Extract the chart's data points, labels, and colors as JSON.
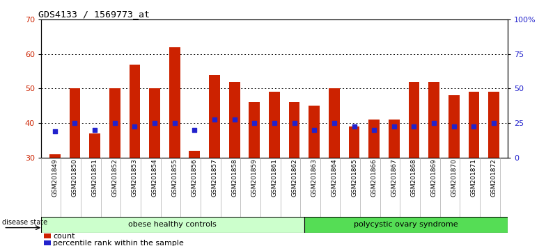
{
  "title": "GDS4133 / 1569773_at",
  "samples": [
    "GSM201849",
    "GSM201850",
    "GSM201851",
    "GSM201852",
    "GSM201853",
    "GSM201854",
    "GSM201855",
    "GSM201856",
    "GSM201857",
    "GSM201858",
    "GSM201859",
    "GSM201861",
    "GSM201862",
    "GSM201863",
    "GSM201864",
    "GSM201865",
    "GSM201866",
    "GSM201867",
    "GSM201868",
    "GSM201869",
    "GSM201870",
    "GSM201871",
    "GSM201872"
  ],
  "counts": [
    31,
    50,
    37,
    50,
    57,
    50,
    62,
    32,
    54,
    52,
    46,
    49,
    46,
    45,
    50,
    39,
    41,
    41,
    52,
    52,
    48,
    49,
    49
  ],
  "percentiles_y": [
    37.5,
    40,
    38,
    40,
    39,
    40,
    40,
    38,
    41,
    41,
    40,
    40,
    40,
    38,
    40,
    39,
    38,
    39,
    39,
    40,
    39,
    39,
    40
  ],
  "ymin": 30,
  "ymax": 70,
  "pct_min": 0,
  "pct_max": 100,
  "bar_color": "#cc2200",
  "pct_color": "#2222cc",
  "group1_label": "obese healthy controls",
  "group2_label": "polycystic ovary syndrome",
  "group1_count": 13,
  "group1_bg": "#ccffcc",
  "group2_bg": "#55dd55",
  "disease_label": "disease state",
  "legend_count": "count",
  "legend_pct": "percentile rank within the sample",
  "ylabel_left_color": "#cc2200",
  "ylabel_right_color": "#2222cc",
  "yticks_left": [
    30,
    40,
    50,
    60,
    70
  ],
  "yticks_right": [
    0,
    25,
    50,
    75,
    100
  ],
  "grid_color": "#000000"
}
